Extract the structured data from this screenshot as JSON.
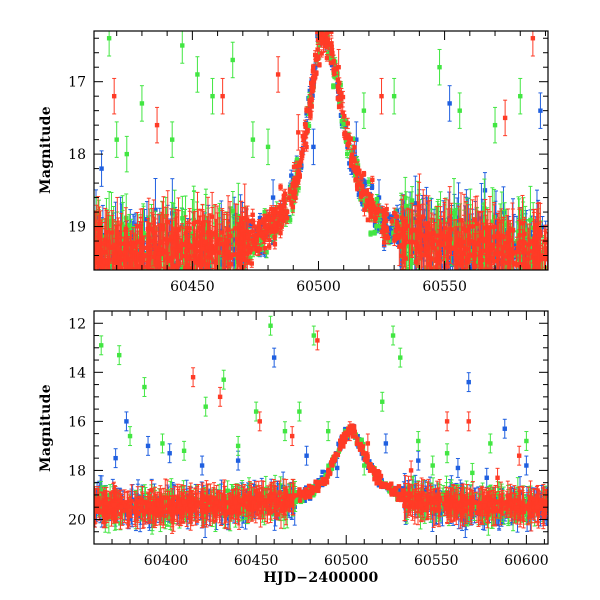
{
  "colors": {
    "series_blue": "#1f5fe0",
    "series_green": "#42e642",
    "series_red": "#ff3b26"
  },
  "chart_data": [
    {
      "type": "scatter",
      "panel": "top",
      "xlabel": "",
      "ylabel": "Magnitude",
      "xlim": [
        60411,
        60591
      ],
      "ylim": [
        19.6,
        16.3
      ],
      "y_inverted": true,
      "x_ticks": [
        60450,
        60500,
        60550
      ],
      "x_tick_labels": [
        "60450",
        "60500",
        "60550"
      ],
      "y_ticks": [
        17,
        18,
        19
      ],
      "y_tick_labels": [
        "17",
        "18",
        "19"
      ],
      "grid": false,
      "legend": "none",
      "profile": {
        "peak_x": 60502,
        "peak_mag": 16.35,
        "baseline_mag": 19.4,
        "rise_halfwidth_days": 14,
        "decline_halfwidth_days": 18
      },
      "series": [
        {
          "color": "blue",
          "points": [
            [
              60414,
              18.2
            ],
            [
              60418,
              19.3
            ],
            [
              60432,
              18.9
            ],
            [
              60446,
              19.0
            ],
            [
              60470,
              19.2
            ],
            [
              60482,
              18.6
            ],
            [
              60498,
              17.9
            ],
            [
              60515,
              17.8
            ],
            [
              60524,
              18.6
            ],
            [
              60540,
              19.1
            ],
            [
              60552,
              17.3
            ],
            [
              60566,
              18.5
            ],
            [
              60580,
              19.2
            ],
            [
              60588,
              17.4
            ]
          ]
        },
        {
          "color": "green",
          "points": [
            [
              60417,
              16.4
            ],
            [
              60420,
              17.8
            ],
            [
              60424,
              18.0
            ],
            [
              60430,
              17.3
            ],
            [
              60442,
              17.8
            ],
            [
              60446,
              16.5
            ],
            [
              60452,
              16.9
            ],
            [
              60458,
              17.2
            ],
            [
              60466,
              16.7
            ],
            [
              60474,
              17.8
            ],
            [
              60480,
              17.9
            ],
            [
              60518,
              17.4
            ],
            [
              60530,
              17.2
            ],
            [
              60548,
              16.8
            ],
            [
              60556,
              17.4
            ],
            [
              60570,
              17.6
            ],
            [
              60580,
              17.2
            ]
          ]
        },
        {
          "color": "red",
          "points": [
            [
              60419,
              17.2
            ],
            [
              60436,
              17.6
            ],
            [
              60462,
              17.2
            ],
            [
              60484,
              16.9
            ],
            [
              60492,
              17.7
            ],
            [
              60502,
              16.35
            ],
            [
              60508,
              16.8
            ],
            [
              60525,
              17.2
            ],
            [
              60560,
              19.0
            ],
            [
              60574,
              17.5
            ],
            [
              60585,
              16.4
            ]
          ]
        }
      ]
    },
    {
      "type": "scatter",
      "panel": "bottom",
      "xlabel": "HJD−2400000",
      "ylabel": "Magnitude",
      "xlim": [
        60360,
        60612
      ],
      "ylim": [
        21.0,
        11.5
      ],
      "y_inverted": true,
      "x_ticks": [
        60400,
        60450,
        60500,
        60550,
        60600
      ],
      "x_tick_labels": [
        "60400",
        "60450",
        "60500",
        "60550",
        "60600"
      ],
      "y_ticks": [
        12,
        14,
        16,
        18,
        20
      ],
      "y_tick_labels": [
        "12",
        "14",
        "16",
        "18",
        "20"
      ],
      "grid": false,
      "legend": "none",
      "profile": {
        "peak_x": 60502,
        "peak_mag": 16.4,
        "baseline_mag": 19.5,
        "rise_halfwidth_days": 20,
        "decline_halfwidth_days": 22
      },
      "series": [
        {
          "color": "blue",
          "points": [
            [
              60372,
              17.5
            ],
            [
              60378,
              16.0
            ],
            [
              60390,
              17.0
            ],
            [
              60402,
              17.3
            ],
            [
              60420,
              17.8
            ],
            [
              60440,
              17.6
            ],
            [
              60460,
              13.4
            ],
            [
              60478,
              17.4
            ],
            [
              60495,
              17.9
            ],
            [
              60522,
              16.9
            ],
            [
              60540,
              17.6
            ],
            [
              60562,
              17.9
            ],
            [
              60568,
              14.4
            ],
            [
              60578,
              18.3
            ],
            [
              60588,
              16.3
            ],
            [
              60600,
              17.8
            ]
          ]
        },
        {
          "color": "green",
          "points": [
            [
              60364,
              12.9
            ],
            [
              60374,
              13.3
            ],
            [
              60380,
              16.6
            ],
            [
              60388,
              14.6
            ],
            [
              60398,
              16.9
            ],
            [
              60410,
              17.2
            ],
            [
              60422,
              15.4
            ],
            [
              60432,
              14.3
            ],
            [
              60440,
              17.0
            ],
            [
              60450,
              15.6
            ],
            [
              60458,
              12.1
            ],
            [
              60466,
              16.4
            ],
            [
              60474,
              15.6
            ],
            [
              60482,
              12.5
            ],
            [
              60490,
              16.4
            ],
            [
              60510,
              17.8
            ],
            [
              60520,
              15.2
            ],
            [
              60526,
              12.5
            ],
            [
              60530,
              13.4
            ],
            [
              60540,
              16.8
            ],
            [
              60548,
              17.8
            ],
            [
              60556,
              17.3
            ],
            [
              60570,
              18.1
            ],
            [
              60580,
              16.9
            ],
            [
              60600,
              16.8
            ]
          ]
        },
        {
          "color": "red",
          "points": [
            [
              60374,
              19.2
            ],
            [
              60392,
              18.8
            ],
            [
              60415,
              14.2
            ],
            [
              60430,
              15.0
            ],
            [
              60452,
              16.0
            ],
            [
              60470,
              16.6
            ],
            [
              60484,
              12.7
            ],
            [
              60502,
              16.4
            ],
            [
              60512,
              16.9
            ],
            [
              60536,
              18.0
            ],
            [
              60556,
              16.0
            ],
            [
              60568,
              16.0
            ],
            [
              60584,
              18.3
            ],
            [
              60596,
              17.4
            ]
          ]
        }
      ]
    }
  ]
}
